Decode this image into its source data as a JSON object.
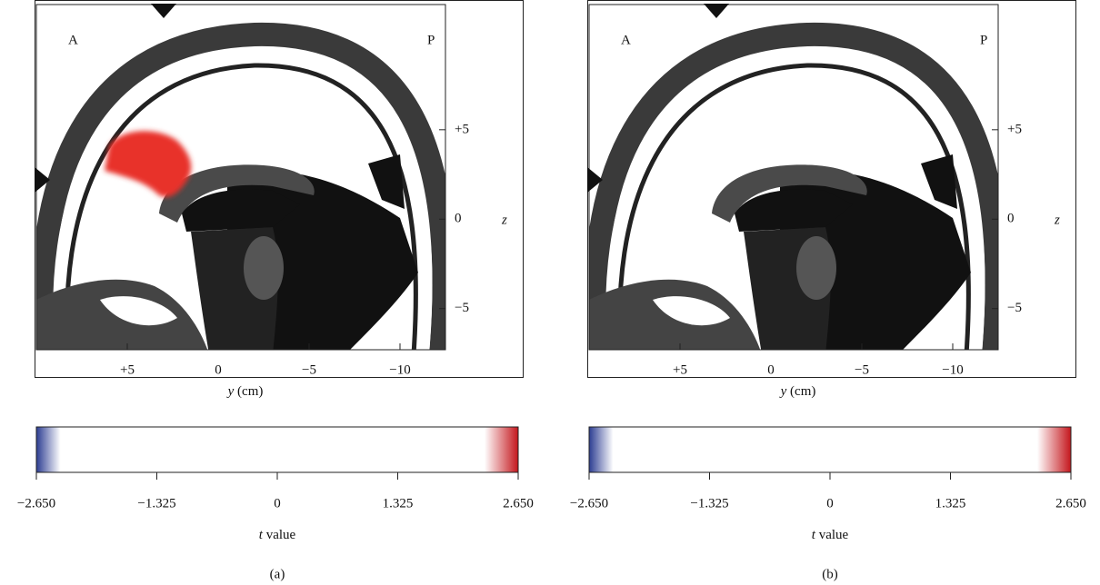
{
  "panels": [
    {
      "label": "(a)",
      "corner_left": "A",
      "corner_right": "P",
      "horizontal_axis": {
        "variable": "y",
        "unit": "(cm)",
        "lim": [
          10,
          -12.5
        ],
        "ticks": [
          {
            "value": 5,
            "label": "+5"
          },
          0,
          {
            "value": -5,
            "label": "−5"
          },
          {
            "value": -10,
            "label": "−10"
          }
        ]
      },
      "vertical_axis": {
        "variable": "z",
        "lim": [
          -7.3,
          12
        ],
        "ticks": [
          {
            "value": 5,
            "label": "+5"
          },
          0,
          {
            "value": -5,
            "label": "−5"
          }
        ]
      },
      "colorbar": {
        "variable": "t",
        "label": "value",
        "lim": [
          -2.65,
          2.65
        ],
        "ticks": [
          {
            "value": -2.65,
            "label": "−2.650"
          },
          {
            "value": -1.325,
            "label": "−1.325"
          },
          0,
          1.325,
          {
            "value": 2.65,
            "label": "2.650"
          }
        ]
      },
      "activation": true
    },
    {
      "label": "(b)",
      "corner_left": "A",
      "corner_right": "P",
      "horizontal_axis": {
        "variable": "y",
        "unit": "(cm)",
        "lim": [
          10,
          -12.5
        ],
        "ticks": [
          {
            "value": 5,
            "label": "+5"
          },
          0,
          {
            "value": -5,
            "label": "−5"
          },
          {
            "value": -10,
            "label": "−10"
          }
        ]
      },
      "vertical_axis": {
        "variable": "z",
        "lim": [
          -7.3,
          12
        ],
        "ticks": [
          {
            "value": 5,
            "label": "+5"
          },
          0,
          {
            "value": -5,
            "label": "−5"
          }
        ]
      },
      "colorbar": {
        "variable": "t",
        "label": "value",
        "lim": [
          -2.65,
          2.65
        ],
        "ticks": [
          {
            "value": -2.65,
            "label": "−2.650"
          },
          {
            "value": -1.325,
            "label": "−1.325"
          },
          0,
          1.325,
          {
            "value": 2.65,
            "label": "2.650"
          }
        ]
      },
      "activation": false
    }
  ]
}
